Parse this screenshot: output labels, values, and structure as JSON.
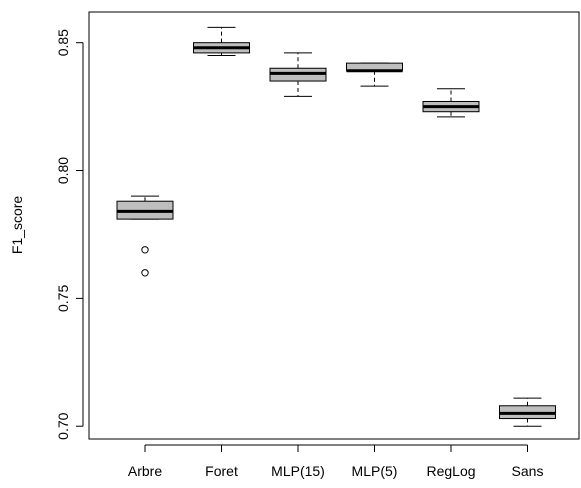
{
  "chart_data": {
    "type": "boxplot",
    "title": "",
    "xlabel": "",
    "ylabel": "F1_score",
    "ylim": [
      0.695,
      0.862
    ],
    "yticks": [
      0.7,
      0.75,
      0.8,
      0.85
    ],
    "ytick_labels": [
      "0.70",
      "0.75",
      "0.80",
      "0.85"
    ],
    "grid": false,
    "legend": "none",
    "box_fill": "#bebebe",
    "categories": [
      "Arbre",
      "Foret",
      "MLP(15)",
      "MLP(5)",
      "RegLog",
      "Sans"
    ],
    "boxes": [
      {
        "category": "Arbre",
        "whisker_low": 0.781,
        "q1": 0.781,
        "median": 0.784,
        "q3": 0.788,
        "whisker_high": 0.79,
        "outliers": [
          0.769,
          0.76
        ]
      },
      {
        "category": "Foret",
        "whisker_low": 0.845,
        "q1": 0.846,
        "median": 0.848,
        "q3": 0.85,
        "whisker_high": 0.856,
        "outliers": []
      },
      {
        "category": "MLP(15)",
        "whisker_low": 0.829,
        "q1": 0.835,
        "median": 0.838,
        "q3": 0.84,
        "whisker_high": 0.846,
        "outliers": []
      },
      {
        "category": "MLP(5)",
        "whisker_low": 0.833,
        "q1": 0.839,
        "median": 0.839,
        "q3": 0.842,
        "whisker_high": 0.842,
        "outliers": []
      },
      {
        "category": "RegLog",
        "whisker_low": 0.821,
        "q1": 0.823,
        "median": 0.825,
        "q3": 0.827,
        "whisker_high": 0.832,
        "outliers": []
      },
      {
        "category": "Sans",
        "whisker_low": 0.7,
        "q1": 0.703,
        "median": 0.705,
        "q3": 0.708,
        "whisker_high": 0.711,
        "outliers": []
      }
    ]
  }
}
